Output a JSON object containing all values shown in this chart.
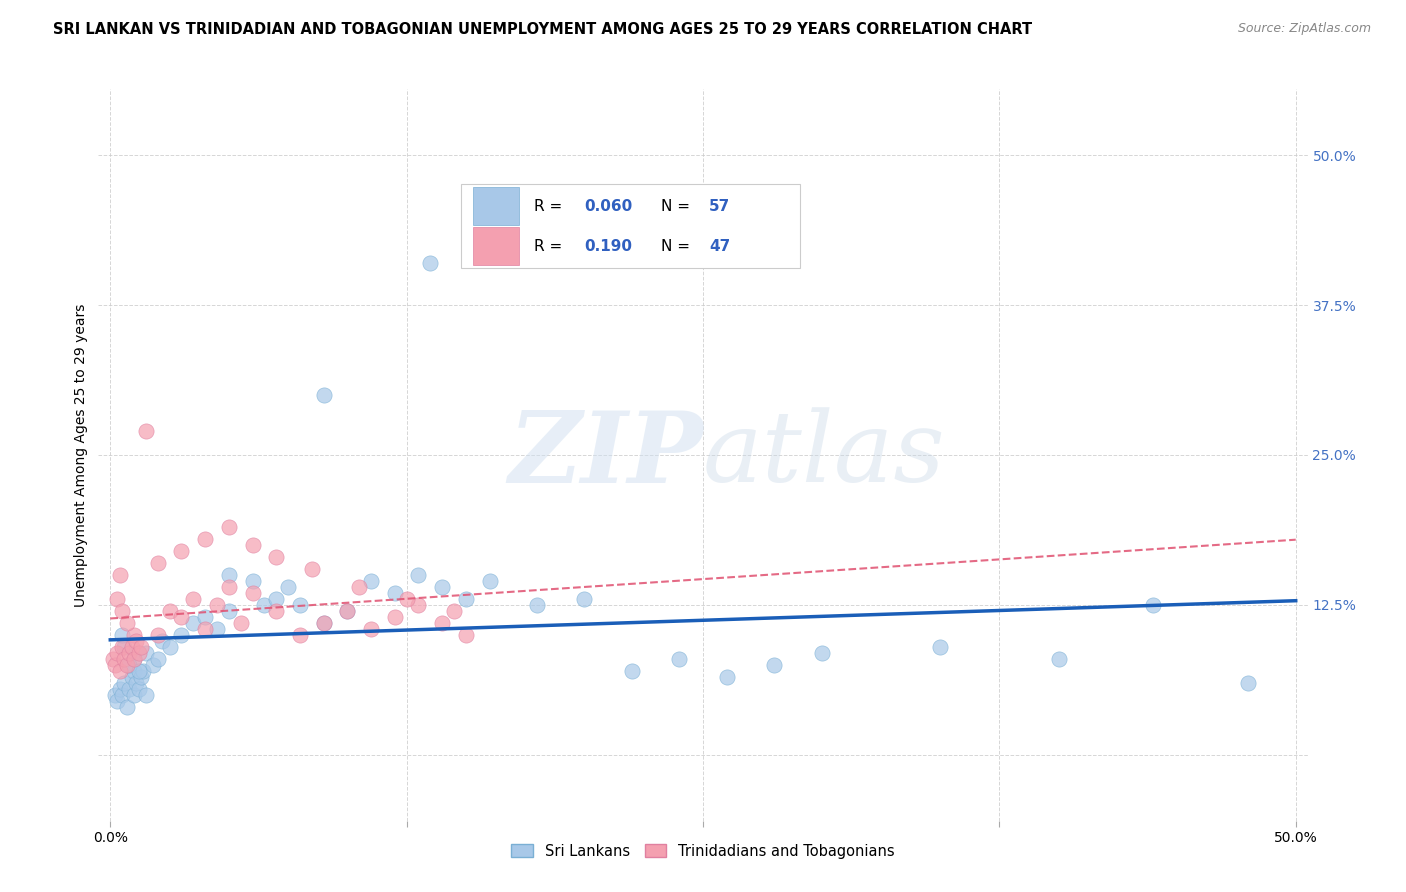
{
  "title": "SRI LANKAN VS TRINIDADIAN AND TOBAGONIAN UNEMPLOYMENT AMONG AGES 25 TO 29 YEARS CORRELATION CHART",
  "source": "Source: ZipAtlas.com",
  "ylabel": "Unemployment Among Ages 25 to 29 years",
  "sri_lankan_R": "0.060",
  "sri_lankan_N": "57",
  "trinidadian_R": "0.190",
  "trinidadian_N": "47",
  "sri_lankan_color": "#a8c8e8",
  "trinidadian_color": "#f4a0b0",
  "sri_lankan_line_color": "#1a5eb8",
  "trinidadian_line_color": "#e05070",
  "background_color": "#ffffff",
  "watermark": "ZIPatlas",
  "title_fontsize": 10.5,
  "axis_label_fontsize": 10,
  "tick_fontsize": 10,
  "legend_fontsize": 11
}
